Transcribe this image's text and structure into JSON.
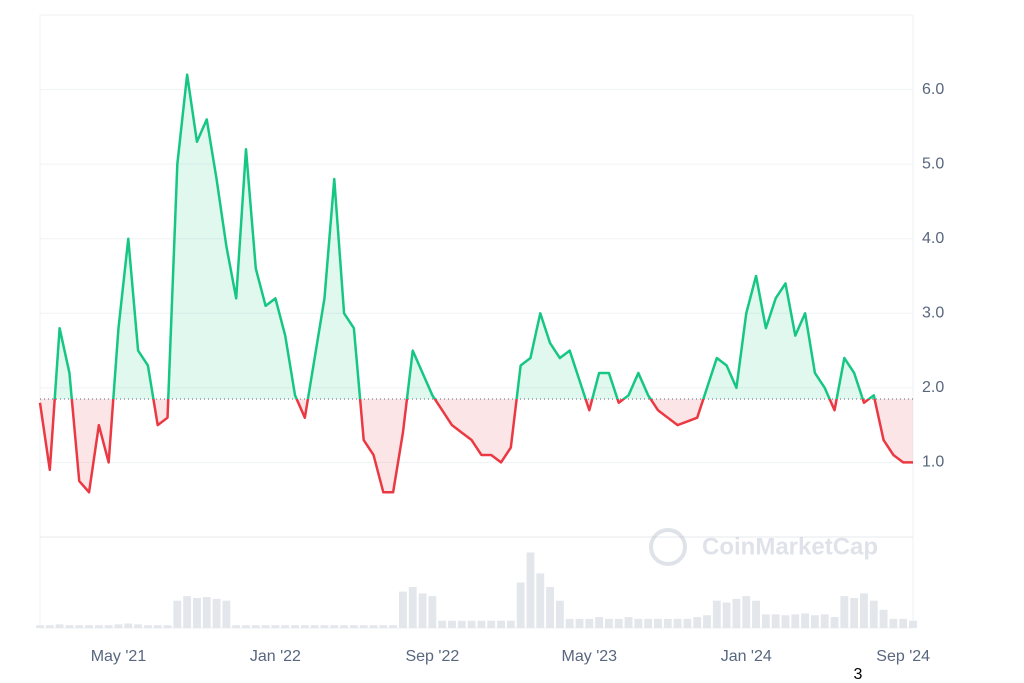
{
  "chart_data": {
    "type": "baseline-line",
    "baseline": 1.85,
    "values": [
      1.8,
      0.9,
      2.8,
      2.2,
      0.75,
      0.6,
      1.5,
      1.0,
      2.8,
      4.0,
      2.5,
      2.3,
      1.5,
      1.6,
      5.0,
      6.2,
      5.3,
      5.6,
      4.8,
      3.9,
      3.2,
      5.2,
      3.6,
      3.1,
      3.2,
      2.7,
      1.9,
      1.6,
      2.4,
      3.2,
      4.8,
      3.0,
      2.8,
      1.3,
      1.1,
      0.6,
      0.6,
      1.4,
      2.5,
      2.2,
      1.9,
      1.7,
      1.5,
      1.4,
      1.3,
      1.1,
      1.1,
      1.0,
      1.2,
      2.3,
      2.4,
      3.0,
      2.6,
      2.4,
      2.5,
      2.1,
      1.7,
      2.2,
      2.2,
      1.8,
      1.9,
      2.2,
      1.9,
      1.7,
      1.6,
      1.5,
      1.55,
      1.6,
      2.0,
      2.4,
      2.3,
      2.0,
      3.0,
      3.5,
      2.8,
      3.2,
      3.4,
      2.7,
      3.0,
      2.2,
      2.0,
      1.7,
      2.4,
      2.2,
      1.8,
      1.9,
      1.3,
      1.1,
      1.0,
      1.0
    ],
    "volume": [
      3,
      3,
      4,
      3,
      3,
      3,
      3,
      3,
      4,
      5,
      4,
      3,
      3,
      3,
      30,
      35,
      33,
      34,
      32,
      30,
      3,
      3,
      3,
      3,
      3,
      3,
      3,
      3,
      3,
      3,
      3,
      3,
      3,
      3,
      3,
      3,
      3,
      40,
      45,
      38,
      35,
      8,
      8,
      8,
      8,
      8,
      8,
      8,
      8,
      50,
      83,
      60,
      45,
      30,
      10,
      10,
      10,
      12,
      10,
      10,
      12,
      10,
      10,
      10,
      10,
      10,
      10,
      12,
      14,
      30,
      28,
      32,
      35,
      30,
      15,
      15,
      14,
      15,
      16,
      14,
      15,
      12,
      35,
      33,
      38,
      30,
      20,
      10,
      10,
      8
    ],
    "xlim": [
      0,
      89
    ],
    "xticks": [
      {
        "value": 8,
        "label": "May '21"
      },
      {
        "value": 24,
        "label": "Jan '22"
      },
      {
        "value": 40,
        "label": "Sep '22"
      },
      {
        "value": 56,
        "label": "May '23"
      },
      {
        "value": 72,
        "label": "Jan '24"
      },
      {
        "value": 88,
        "label": "Sep '24"
      }
    ],
    "ylim": [
      0,
      7.0
    ],
    "yticks": [
      {
        "value": 1,
        "label": "1.0"
      },
      {
        "value": 2,
        "label": "2.0"
      },
      {
        "value": 3,
        "label": "3.0"
      },
      {
        "value": 4,
        "label": "4.0"
      },
      {
        "value": 5,
        "label": "5.0"
      },
      {
        "value": 6,
        "label": "6.0"
      }
    ],
    "vlim": [
      0,
      100
    ],
    "grid": true,
    "up_color": "#16c784",
    "down_color": "#ea3943",
    "watermark": "CoinMarketCap",
    "footnote": "3"
  }
}
